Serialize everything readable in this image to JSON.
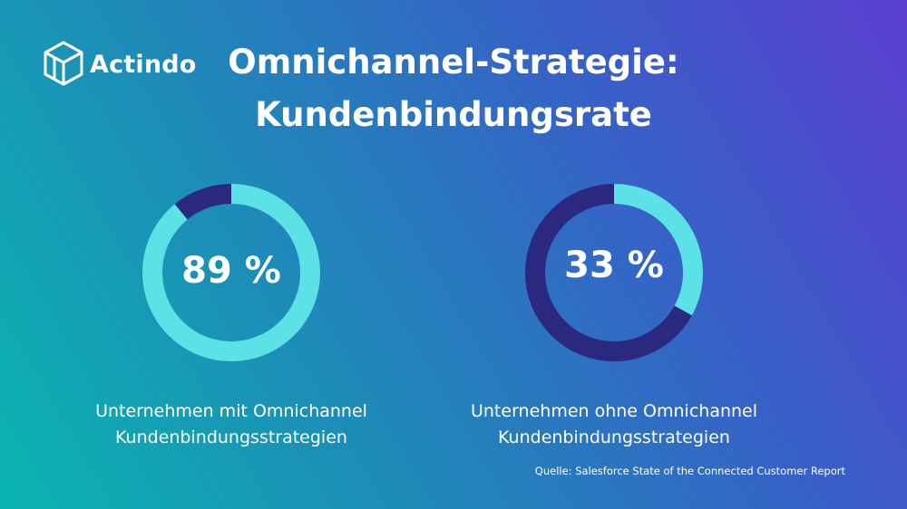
{
  "brand": {
    "name": "Actindo",
    "logo_icon": "actindo-cube-icon"
  },
  "title": {
    "line1": "Omnichannel-Strategie:",
    "line2": "Kundenbindungsrate"
  },
  "chart_data": [
    {
      "type": "pie",
      "values": [
        89,
        11
      ],
      "value_label": "89 %",
      "caption": {
        "line1": "Unternehmen mit Omnichannel",
        "line2": "Kundenbindungsstrategien"
      },
      "colors": {
        "value": "#5ce1e6",
        "remainder": "#2b2880"
      }
    },
    {
      "type": "pie",
      "values": [
        33,
        67
      ],
      "value_label": "33 %",
      "caption": {
        "line1": "Unternehmen ohne Omnichannel",
        "line2": "Kundenbindungsstrategien"
      },
      "colors": {
        "value": "#5ce1e6",
        "remainder": "#2b2880"
      }
    }
  ],
  "source": "Quelle: Salesforce State of the Connected Customer Report"
}
